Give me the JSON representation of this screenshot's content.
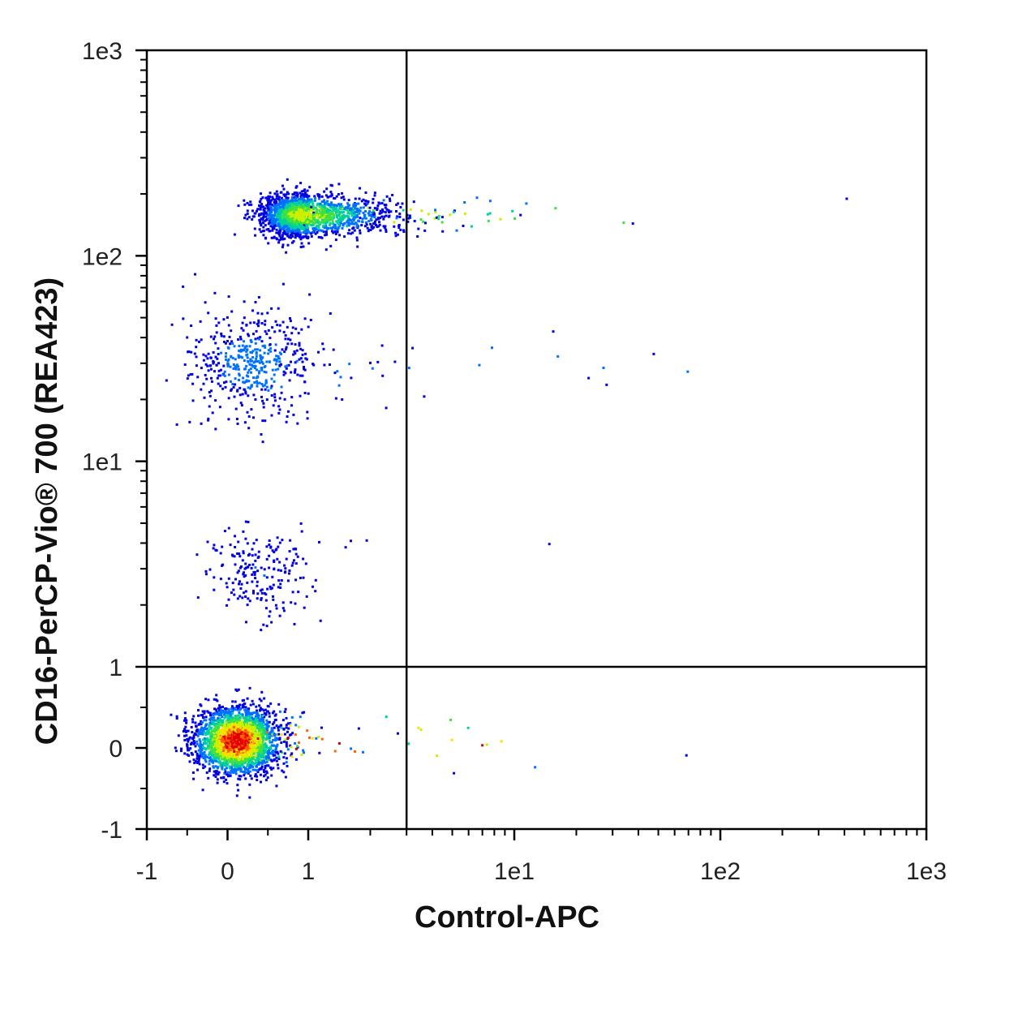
{
  "chart_data": {
    "type": "scatter",
    "variant": "flow-cytometry-density-dot-plot",
    "title": "",
    "xlabel": "Control-APC",
    "ylabel": "CD16-PerCP-Vio® 700 (REA423)",
    "x_scale": "biexponential (linear -1..1, log 1..1e3)",
    "y_scale": "biexponential (linear -1..1, log 1..1e3)",
    "xlim": [
      -1,
      1000
    ],
    "ylim": [
      -1,
      1000
    ],
    "x_ticks": [
      {
        "value": -1,
        "label": "-1"
      },
      {
        "value": 0,
        "label": "0"
      },
      {
        "value": 1,
        "label": "1"
      },
      {
        "value": 10,
        "label": "1e1"
      },
      {
        "value": 100,
        "label": "1e2"
      },
      {
        "value": 1000,
        "label": "1e3"
      }
    ],
    "y_ticks": [
      {
        "value": -1,
        "label": "-1"
      },
      {
        "value": 0,
        "label": "0"
      },
      {
        "value": 1,
        "label": "1"
      },
      {
        "value": 10,
        "label": "1e1"
      },
      {
        "value": 100,
        "label": "1e2"
      },
      {
        "value": 1000,
        "label": "1e3"
      }
    ],
    "quadrant_gate": {
      "x": 3,
      "y": 1
    },
    "grid": false,
    "legend": "none",
    "density_colors": [
      "#0000e0",
      "#0070ff",
      "#00d0a0",
      "#40e040",
      "#c8f000",
      "#ffe000",
      "#ff6000",
      "#e00000"
    ],
    "populations": [
      {
        "x_center": 0.1,
        "y_center": 0.1,
        "x_spread": 0.5,
        "y_spread": 0.4,
        "relative_size": 0.48,
        "peak_density": 1.0
      },
      {
        "x_center": 0.9,
        "y_center": 160,
        "x_spread": 1.5,
        "y_spread": 40,
        "relative_size": 0.38,
        "peak_density": 0.6
      },
      {
        "x_center": 0.3,
        "y_center": 30,
        "x_spread": 1.0,
        "y_spread": 25,
        "relative_size": 0.1,
        "peak_density": 0.2
      },
      {
        "x_center": 0.4,
        "y_center": 3,
        "x_spread": 0.6,
        "y_spread": 2,
        "relative_size": 0.04,
        "peak_density": 0.12
      }
    ]
  }
}
